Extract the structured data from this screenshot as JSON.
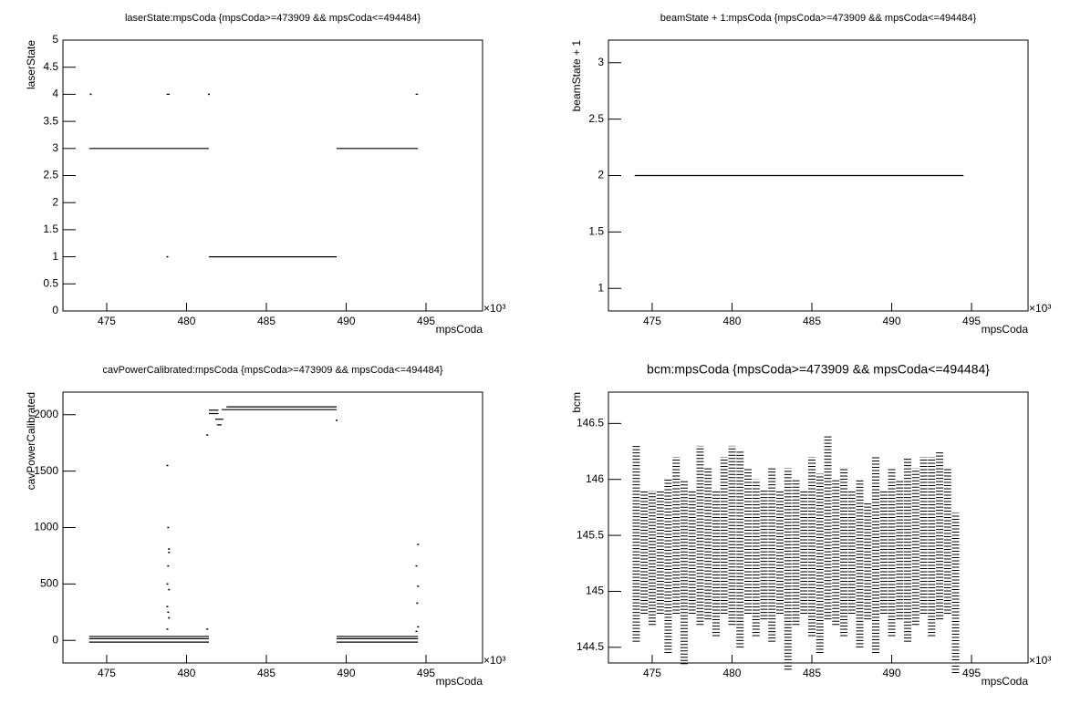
{
  "chart_data": [
    {
      "type": "scatter",
      "title": "laserState:mpsCoda {mpsCoda>=473909 && mpsCoda<=494484}",
      "xlabel": "mpsCoda",
      "ylabel": "laserState",
      "x_multiplier": "×10³",
      "xlim": [
        472.26,
        498.54
      ],
      "xticks": [
        475,
        480,
        485,
        490,
        495
      ],
      "ylim": [
        0,
        5
      ],
      "yticks": [
        0,
        0.5,
        1,
        1.5,
        2,
        2.5,
        3,
        3.5,
        4,
        4.5,
        5
      ],
      "segments": [
        {
          "x": [
            473.9,
            481.4
          ],
          "y": 3
        },
        {
          "x": [
            489.4,
            494.5
          ],
          "y": 3
        },
        {
          "x": [
            481.4,
            489.4
          ],
          "y": 1
        },
        {
          "x": [
            478.75,
            478.95
          ],
          "y": 4
        },
        {
          "x": [
            494.35,
            494.5
          ],
          "y": 4
        }
      ],
      "points": {
        "x": [
          474.0,
          481.4,
          478.8
        ],
        "y": [
          4,
          4,
          1
        ]
      }
    },
    {
      "type": "scatter",
      "title": "beamState + 1:mpsCoda {mpsCoda>=473909 && mpsCoda<=494484}",
      "xlabel": "mpsCoda",
      "ylabel": "beamState + 1",
      "x_multiplier": "×10³",
      "xlim": [
        472.26,
        498.54
      ],
      "xticks": [
        475,
        480,
        485,
        490,
        495
      ],
      "ylim": [
        0.8,
        3.2
      ],
      "yticks": [
        1,
        1.5,
        2,
        2.5,
        3
      ],
      "segments": [
        {
          "x": [
            473.9,
            494.5
          ],
          "y": 2
        }
      ],
      "points": {
        "x": [],
        "y": []
      }
    },
    {
      "type": "scatter",
      "title": "cavPowerCalibrated:mpsCoda {mpsCoda>=473909 && mpsCoda<=494484}",
      "xlabel": "mpsCoda",
      "ylabel": "cavPowerCalibrated",
      "x_multiplier": "×10³",
      "xlim": [
        472.26,
        498.54
      ],
      "xticks": [
        475,
        480,
        485,
        490,
        495
      ],
      "ylim": [
        -200,
        2200
      ],
      "yticks": [
        0,
        500,
        1000,
        1500,
        2000
      ],
      "segments": [
        {
          "x": [
            473.9,
            481.4
          ],
          "y": 35
        },
        {
          "x": [
            473.9,
            481.4
          ],
          "y": 15
        },
        {
          "x": [
            473.9,
            481.4
          ],
          "y": -15
        },
        {
          "x": [
            489.4,
            494.5
          ],
          "y": 35
        },
        {
          "x": [
            489.4,
            494.5
          ],
          "y": 15
        },
        {
          "x": [
            489.4,
            494.5
          ],
          "y": -15
        },
        {
          "x": [
            482.5,
            489.4
          ],
          "y": 2070
        },
        {
          "x": [
            482.2,
            489.4
          ],
          "y": 2045
        },
        {
          "x": [
            481.4,
            482.0
          ],
          "y": 2040
        },
        {
          "x": [
            481.4,
            482.0
          ],
          "y": 2010
        },
        {
          "x": [
            481.8,
            482.3
          ],
          "y": 1960
        },
        {
          "x": [
            481.9,
            482.2
          ],
          "y": 1910
        }
      ],
      "points": {
        "x": [
          478.8,
          478.85,
          478.9,
          478.9,
          478.85,
          478.8,
          478.9,
          478.8,
          478.85,
          478.9,
          478.8,
          481.3,
          481.3,
          489.4,
          494.5,
          494.4,
          494.5,
          494.45,
          494.5,
          494.4
        ],
        "y": [
          1550,
          1000,
          810,
          780,
          660,
          500,
          450,
          300,
          250,
          200,
          100,
          1820,
          100,
          1950,
          850,
          660,
          480,
          330,
          120,
          80
        ]
      }
    },
    {
      "type": "columns",
      "title": "bcm:mpsCoda {mpsCoda>=473909 && mpsCoda<=494484}",
      "xlabel": "mpsCoda",
      "ylabel": "bcm",
      "x_multiplier": "×10³",
      "xlim": [
        472.26,
        498.54
      ],
      "xticks": [
        475,
        480,
        485,
        490,
        495
      ],
      "ylim": [
        144.36,
        146.78
      ],
      "yticks": [
        144.5,
        145,
        145.5,
        146,
        146.5
      ],
      "columns": {
        "x": [
          474,
          474.5,
          475,
          475.5,
          476,
          476.5,
          477,
          477.5,
          478,
          478.5,
          479,
          479.5,
          480,
          480.5,
          481,
          481.5,
          482,
          482.5,
          483,
          483.5,
          484,
          484.5,
          485,
          485.5,
          486,
          486.5,
          487,
          487.5,
          488,
          488.5,
          489,
          489.5,
          490,
          490.5,
          491,
          491.5,
          492,
          492.5,
          493,
          493.5,
          494
        ],
        "max": [
          146.3,
          145.9,
          145.9,
          145.9,
          146.0,
          146.2,
          146.0,
          145.9,
          146.3,
          146.1,
          145.9,
          146.2,
          146.3,
          146.25,
          146.1,
          146.0,
          145.9,
          146.1,
          145.9,
          146.1,
          146.0,
          145.9,
          146.2,
          146.05,
          146.4,
          146.0,
          146.1,
          145.9,
          146.0,
          145.8,
          146.2,
          145.9,
          146.1,
          146.0,
          146.2,
          146.1,
          146.2,
          146.2,
          146.25,
          146.1,
          145.7
        ],
        "min": [
          144.55,
          144.8,
          144.7,
          144.8,
          144.45,
          144.8,
          144.35,
          144.8,
          144.7,
          144.75,
          144.6,
          144.8,
          144.7,
          144.5,
          144.8,
          144.6,
          144.75,
          144.55,
          144.8,
          144.3,
          144.7,
          144.8,
          144.6,
          144.45,
          144.75,
          144.7,
          144.6,
          144.8,
          144.5,
          144.75,
          144.45,
          144.8,
          144.6,
          144.75,
          144.55,
          144.7,
          144.8,
          144.6,
          144.75,
          144.8,
          144.27
        ]
      }
    }
  ]
}
